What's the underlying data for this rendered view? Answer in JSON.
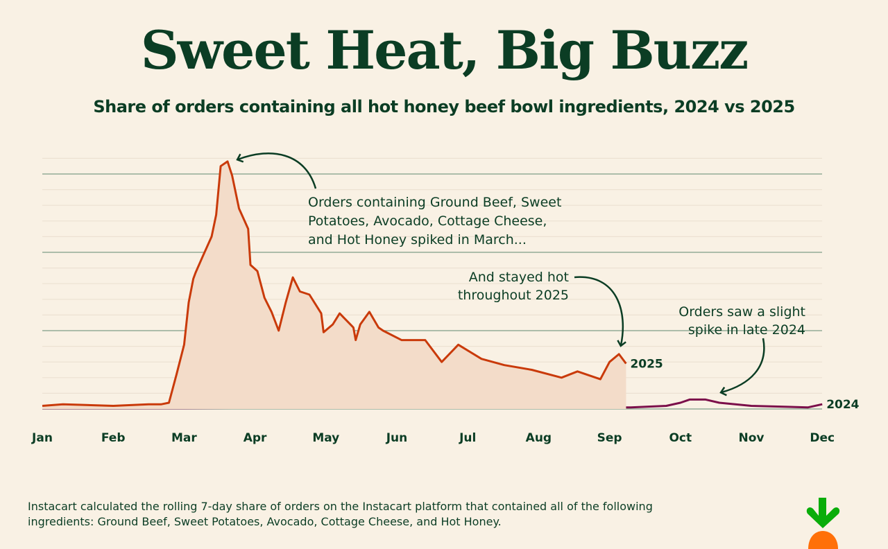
{
  "title": "Sweet Heat, Big Buzz",
  "subtitle": "Share of orders containing all hot honey beef bowl ingredients, 2024 vs 2025",
  "footnote": "Instacart calculated the rolling 7-day share of orders on the Instacart platform that contained all of the following ingredients: Ground Beef, Sweet Potatoes, Avocado, Cottage Cheese, and Hot Honey.",
  "logo": {
    "name": "instacart-carrot-logo",
    "colors": {
      "leaf": "#0aad0a",
      "carrot": "#ff7009"
    }
  },
  "chart_data": {
    "type": "line",
    "title": "",
    "xlabel": "",
    "ylabel": "",
    "x_tick_labels": [
      "Jan",
      "Feb",
      "Mar",
      "Apr",
      "May",
      "Jun",
      "Jul",
      "Aug",
      "Sep",
      "Oct",
      "Nov",
      "Dec"
    ],
    "y_tick_labels": [],
    "ylim": [
      0,
      16
    ],
    "grid": {
      "major_every": 5,
      "minor_every": 1
    },
    "annotations": [
      {
        "lines": [
          "Orders containing Ground Beef, Sweet",
          "Potatoes, Avocado, Cottage Cheese,",
          "and Hot Honey spiked in March..."
        ],
        "points_to": "2025-03-20"
      },
      {
        "lines": [
          "And stayed hot",
          "throughout 2025"
        ],
        "points_to": "2025-09-01"
      },
      {
        "lines": [
          "Orders saw a slight",
          "spike in late 2024"
        ],
        "points_to": "2024-10-08"
      }
    ],
    "series": [
      {
        "name": "2025",
        "color": "#c93a0a",
        "fill": "#f3dcc9",
        "x": [
          "2025-01-01",
          "2025-01-10",
          "2025-02-01",
          "2025-02-15",
          "2025-02-20",
          "2025-02-23",
          "2025-02-26",
          "2025-03-01",
          "2025-03-03",
          "2025-03-05",
          "2025-03-06",
          "2025-03-09",
          "2025-03-13",
          "2025-03-15",
          "2025-03-17",
          "2025-03-20",
          "2025-03-22",
          "2025-03-25",
          "2025-03-29",
          "2025-03-30",
          "2025-04-02",
          "2025-04-05",
          "2025-04-08",
          "2025-04-11",
          "2025-04-14",
          "2025-04-17",
          "2025-04-20",
          "2025-04-24",
          "2025-04-29",
          "2025-04-30",
          "2025-05-04",
          "2025-05-07",
          "2025-05-09",
          "2025-05-13",
          "2025-05-14",
          "2025-05-16",
          "2025-05-20",
          "2025-05-24",
          "2025-05-26",
          "2025-06-03",
          "2025-06-13",
          "2025-06-20",
          "2025-06-27",
          "2025-07-07",
          "2025-07-17",
          "2025-07-29",
          "2025-08-11",
          "2025-08-18",
          "2025-08-28",
          "2025-09-01",
          "2025-09-05",
          "2025-09-08"
        ],
        "y": [
          0.2,
          0.3,
          0.2,
          0.3,
          0.3,
          0.4,
          2.2,
          4.1,
          6.8,
          8.3,
          8.7,
          9.7,
          11.0,
          12.4,
          15.5,
          15.8,
          14.9,
          12.8,
          11.5,
          9.2,
          8.8,
          7.1,
          6.2,
          5.0,
          6.8,
          8.4,
          7.5,
          7.3,
          6.1,
          4.9,
          5.4,
          6.1,
          5.8,
          5.2,
          4.4,
          5.4,
          6.2,
          5.2,
          5.0,
          4.4,
          4.4,
          3.0,
          4.1,
          3.2,
          2.8,
          2.5,
          2.0,
          2.4,
          1.9,
          3.0,
          3.5,
          2.9
        ]
      },
      {
        "name": "2024",
        "color": "#7b0f4a",
        "x": [
          "2024-01-01",
          "2024-03-01",
          "2024-05-01",
          "2024-07-01",
          "2024-09-10",
          "2024-09-25",
          "2024-10-01",
          "2024-10-05",
          "2024-10-12",
          "2024-10-18",
          "2024-10-25",
          "2024-11-01",
          "2024-11-25",
          "2024-12-01"
        ],
        "y": [
          0.05,
          0.05,
          0.1,
          0.1,
          0.1,
          0.2,
          0.4,
          0.6,
          0.6,
          0.4,
          0.3,
          0.2,
          0.1,
          0.3
        ]
      }
    ]
  }
}
